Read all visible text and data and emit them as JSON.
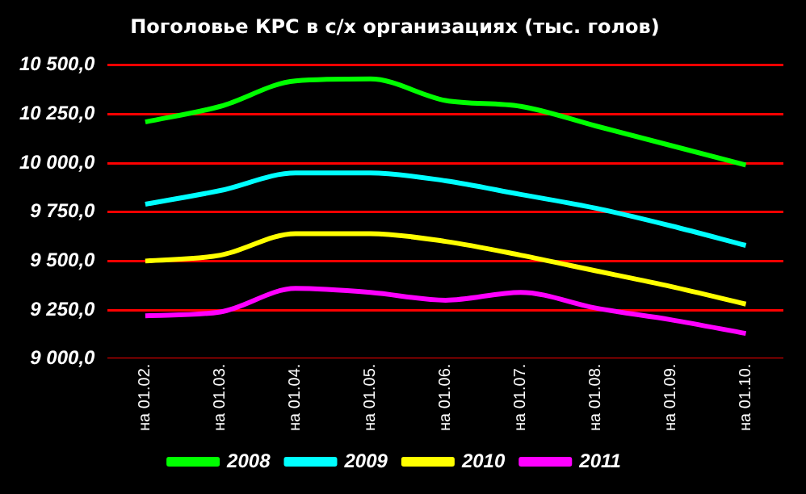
{
  "chart_data": {
    "type": "line",
    "title": "Поголовье КРС в с/х организациях (тыс. голов)",
    "categories": [
      "на 01.02.",
      "на 01.03.",
      "на 01.04.",
      "на 01.05.",
      "на 01.06.",
      "на 01.07.",
      "на 01.08.",
      "на 01.09.",
      "на 01.10."
    ],
    "series": [
      {
        "name": "2008",
        "color": "#00ff00",
        "values": [
          10210,
          10290,
          10420,
          10430,
          10320,
          10290,
          10190,
          10090,
          9990
        ]
      },
      {
        "name": "2009",
        "color": "#00ffff",
        "values": [
          9790,
          9860,
          9950,
          9950,
          9910,
          9840,
          9770,
          9680,
          9580
        ]
      },
      {
        "name": "2010",
        "color": "#ffff00",
        "values": [
          9500,
          9530,
          9640,
          9640,
          9600,
          9530,
          9450,
          9370,
          9280
        ]
      },
      {
        "name": "2011",
        "color": "#ff00ff",
        "values": [
          9220,
          9240,
          9360,
          9340,
          9300,
          9340,
          9260,
          9200,
          9130
        ]
      }
    ],
    "ylim": [
      9000,
      10500
    ],
    "yticks": [
      {
        "value": 9000,
        "label": "9 000,0"
      },
      {
        "value": 9250,
        "label": "9 250,0"
      },
      {
        "value": 9500,
        "label": "9 500,0"
      },
      {
        "value": 9750,
        "label": "9 750,0"
      },
      {
        "value": 10000,
        "label": "10 000,0"
      },
      {
        "value": 10250,
        "label": "10 250,0"
      },
      {
        "value": 10500,
        "label": "10 500,0"
      }
    ],
    "grid": "y",
    "legend": "bottom",
    "marker": "none",
    "line_style": "solid"
  }
}
